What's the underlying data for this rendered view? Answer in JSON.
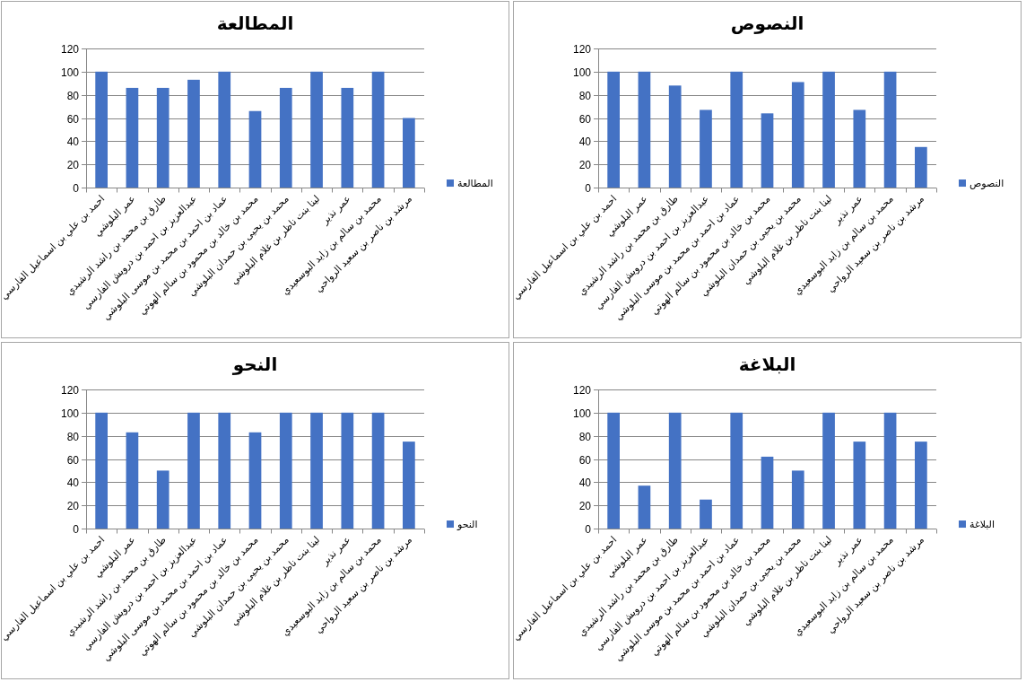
{
  "chart_data": [
    {
      "type": "bar",
      "title": "المطالعة",
      "categories": [
        "احمد بن علي بن اسماعيل الفارسي",
        "عمر البلوشي",
        "طارق بن محمد بن راشد الرشيدي",
        "عبدالعزيز بن احمد بن درويش الفارسي",
        "عماد بن احمد بن محمد بن موسى البلوشي",
        "محمد بن خالد بن محمود بن سالم الهوتي",
        "محمد بن يحيى بن حمدان البلوشي",
        "لينا بنت ناظر بن غلام البلوشي",
        "عمر نذير",
        "محمد بن سالم بن زايد البوسعيدي",
        "مرشد بن ناصر بن سعيد الرواحي"
      ],
      "series": [
        {
          "name": "المطالعة",
          "color": "#4472c4",
          "values": [
            100,
            86,
            86,
            93,
            100,
            66,
            86,
            100,
            86,
            100,
            60
          ]
        }
      ],
      "ylim": [
        0,
        120
      ],
      "yticks": [
        0,
        20,
        40,
        60,
        80,
        100,
        120
      ],
      "grid": "y",
      "legend": "right"
    },
    {
      "type": "bar",
      "title": "النصوص",
      "categories": [
        "احمد بن علي بن اسماعيل الفارسي",
        "عمر البلوشي",
        "طارق بن محمد بن راشد الرشيدي",
        "عبدالعزيز بن احمد بن درويش الفارسي",
        "عماد بن احمد بن محمد بن موسى البلوشي",
        "محمد بن خالد بن محمود بن سالم الهوتي",
        "محمد بن يحيى بن حمدان البلوشي",
        "لينا بنت ناظر بن غلام البلوشي",
        "عمر نذير",
        "محمد بن سالم بن زايد البوسعيدي",
        "مرشد بن ناصر بن سعيد الرواحي"
      ],
      "series": [
        {
          "name": "النصوص",
          "color": "#4472c4",
          "values": [
            100,
            100,
            88,
            67,
            100,
            64,
            91,
            100,
            67,
            100,
            35
          ]
        }
      ],
      "ylim": [
        0,
        120
      ],
      "yticks": [
        0,
        20,
        40,
        60,
        80,
        100,
        120
      ],
      "grid": "y",
      "legend": "right"
    },
    {
      "type": "bar",
      "title": "النحو",
      "categories": [
        "احمد بن علي بن اسماعيل الفارسي",
        "عمر البلوشي",
        "طارق بن محمد بن راشد الرشيدي",
        "عبدالعزيز بن احمد بن درويش الفارسي",
        "عماد بن احمد بن محمد بن موسى البلوشي",
        "محمد بن خالد بن محمود بن سالم الهوتي",
        "محمد بن يحيى بن حمدان البلوشي",
        "لينا بنت ناظر بن غلام البلوشي",
        "عمر نذير",
        "محمد بن سالم بن زايد البوسعيدي",
        "مرشد بن ناصر بن سعيد الرواحي"
      ],
      "series": [
        {
          "name": "النحو",
          "color": "#4472c4",
          "values": [
            100,
            83,
            50,
            100,
            100,
            83,
            100,
            100,
            100,
            100,
            75
          ]
        }
      ],
      "ylim": [
        0,
        120
      ],
      "yticks": [
        0,
        20,
        40,
        60,
        80,
        100,
        120
      ],
      "grid": "y",
      "legend": "right"
    },
    {
      "type": "bar",
      "title": "البلاغة",
      "categories": [
        "احمد بن علي بن اسماعيل الفارسي",
        "عمر البلوشي",
        "طارق بن محمد بن راشد الرشيدي",
        "عبدالعزيز بن احمد بن درويش الفارسي",
        "عماد بن احمد بن محمد بن موسى البلوشي",
        "محمد بن خالد بن محمود بن سالم الهوتي",
        "محمد بن يحيى بن حمدان البلوشي",
        "لينا بنت ناظر بن غلام البلوشي",
        "عمر نذير",
        "محمد بن سالم بن زايد البوسعيدي",
        "مرشد بن ناصر بن سعيد الرواحي"
      ],
      "series": [
        {
          "name": "البلاغة",
          "color": "#4472c4",
          "values": [
            100,
            37,
            100,
            25,
            100,
            62,
            50,
            100,
            75,
            100,
            75
          ]
        }
      ],
      "ylim": [
        0,
        120
      ],
      "yticks": [
        0,
        20,
        40,
        60,
        80,
        100,
        120
      ],
      "grid": "y",
      "legend": "right"
    }
  ]
}
